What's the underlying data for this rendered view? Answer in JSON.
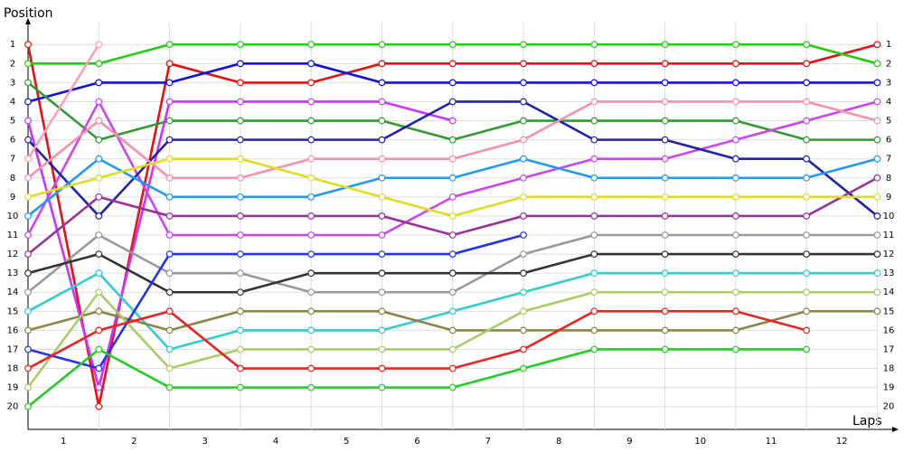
{
  "chart_data": {
    "type": "line",
    "x_label": "Laps",
    "y_label": "Position",
    "x": [
      0,
      1,
      2,
      3,
      4,
      5,
      6,
      7,
      8,
      9,
      10,
      11,
      12
    ],
    "xlim": [
      0,
      12.25
    ],
    "xticks": [
      1,
      2,
      3,
      4,
      5,
      6,
      7,
      8,
      9,
      10,
      11,
      12
    ],
    "ylim": [
      21.2,
      -0.15
    ],
    "yticks": [
      1,
      2,
      3,
      4,
      5,
      6,
      7,
      8,
      9,
      10,
      11,
      12,
      13,
      14,
      15,
      16,
      17,
      18,
      19,
      20
    ],
    "grid": true,
    "series": [
      {
        "color": "#e81010",
        "values": [
          1,
          20,
          2,
          3,
          3,
          2,
          2,
          2,
          2,
          2,
          2,
          2,
          1
        ]
      },
      {
        "color": "#22cc11",
        "values": [
          2,
          2,
          1,
          1,
          1,
          1,
          1,
          1,
          1,
          1,
          1,
          1,
          2
        ]
      },
      {
        "color": "#1111dd",
        "values": [
          4,
          3,
          3,
          2,
          2,
          3,
          3,
          3,
          3,
          3,
          3,
          3,
          3
        ]
      },
      {
        "color": "#339933",
        "values": [
          3,
          6,
          5,
          5,
          5,
          5,
          6,
          5,
          5,
          5,
          5,
          6,
          6
        ]
      },
      {
        "color": "#cc33ff",
        "values": [
          5,
          19,
          4,
          4,
          4,
          4,
          5,
          null,
          null,
          null,
          null,
          null,
          null
        ]
      },
      {
        "color": "#cc44ee",
        "values": [
          11,
          4,
          11,
          11,
          11,
          11,
          9,
          8,
          7,
          7,
          6,
          5,
          4
        ]
      },
      {
        "color": "#2222aa",
        "values": [
          6,
          10,
          6,
          6,
          6,
          6,
          4,
          4,
          6,
          6,
          7,
          7,
          10
        ]
      },
      {
        "color": "#f78fb0",
        "values": [
          8,
          5,
          8,
          8,
          7,
          7,
          7,
          6,
          4,
          4,
          4,
          4,
          5
        ]
      },
      {
        "color": "#993399",
        "values": [
          12,
          9,
          10,
          10,
          10,
          10,
          11,
          10,
          10,
          10,
          10,
          10,
          8
        ]
      },
      {
        "color": "#2299ee",
        "values": [
          10,
          7,
          9,
          9,
          9,
          8,
          8,
          7,
          8,
          8,
          8,
          8,
          7
        ]
      },
      {
        "color": "#dddd22",
        "values": [
          9,
          8,
          7,
          7,
          8,
          9,
          10,
          9,
          9,
          9,
          9,
          9,
          9
        ]
      },
      {
        "color": "#f9a0b8",
        "values": [
          7,
          1,
          null,
          null,
          null,
          null,
          null,
          null,
          null,
          null,
          null,
          null,
          null
        ]
      },
      {
        "color": "#999999",
        "values": [
          14,
          11,
          13,
          13,
          14,
          14,
          14,
          12,
          11,
          11,
          11,
          11,
          11
        ]
      },
      {
        "color": "#333333",
        "values": [
          13,
          12,
          14,
          14,
          13,
          13,
          13,
          13,
          12,
          12,
          12,
          12,
          12
        ]
      },
      {
        "color": "#33cccc",
        "values": [
          15,
          13,
          17,
          16,
          16,
          16,
          15,
          14,
          13,
          13,
          13,
          13,
          13
        ]
      },
      {
        "color": "#888844",
        "values": [
          16,
          15,
          16,
          15,
          15,
          15,
          16,
          16,
          16,
          16,
          16,
          15,
          15
        ]
      },
      {
        "color": "#aacc66",
        "values": [
          19,
          14,
          18,
          17,
          17,
          17,
          17,
          15,
          14,
          14,
          14,
          14,
          14
        ]
      },
      {
        "color": "#2233ee",
        "values": [
          17,
          18,
          12,
          12,
          12,
          12,
          12,
          11,
          null,
          null,
          null,
          null,
          null
        ]
      },
      {
        "color": "#ee2222",
        "values": [
          18,
          16,
          15,
          18,
          18,
          18,
          18,
          17,
          15,
          15,
          15,
          16,
          null
        ]
      },
      {
        "color": "#22cc22",
        "values": [
          20,
          17,
          19,
          19,
          19,
          19,
          19,
          18,
          17,
          17,
          17,
          17,
          null
        ]
      }
    ]
  }
}
